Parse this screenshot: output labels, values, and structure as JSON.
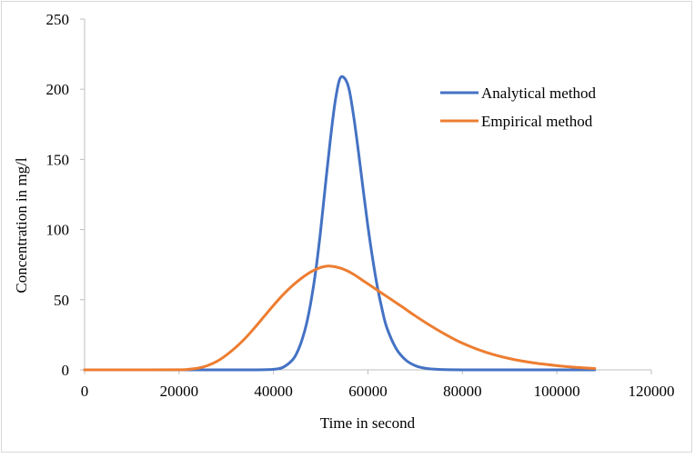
{
  "chart_data": {
    "type": "line",
    "title": "",
    "xlabel": "Time in second",
    "ylabel": "Concentration in mg/l",
    "xlim": [
      0,
      120000
    ],
    "ylim": [
      0,
      250
    ],
    "xticks": [
      0,
      20000,
      40000,
      60000,
      80000,
      100000,
      120000
    ],
    "yticks": [
      0,
      50,
      100,
      150,
      200,
      250
    ],
    "x_tick_labels": [
      "0",
      "20000",
      "40000",
      "60000",
      "80000",
      "100000",
      "120000"
    ],
    "y_tick_labels": [
      "0",
      "50",
      "100",
      "150",
      "200",
      "250"
    ],
    "grid": false,
    "legend_position": "top-right",
    "series": [
      {
        "name": "Analytical method",
        "color": "#4472c4",
        "x": [
          0,
          10000,
          20000,
          30000,
          36000,
          40000,
          42000,
          44000,
          45000,
          46000,
          47000,
          48000,
          49000,
          50000,
          51000,
          52000,
          53000,
          54000,
          55000,
          56000,
          57000,
          58000,
          59000,
          60000,
          61000,
          62000,
          63000,
          64000,
          66000,
          68000,
          70000,
          72000,
          75000,
          80000,
          90000,
          100000,
          108000
        ],
        "y": [
          0,
          0,
          0,
          0,
          0.02,
          0.4,
          1.8,
          7,
          12.5,
          21,
          33,
          50,
          72,
          100,
          132,
          163,
          190,
          207,
          208,
          200,
          180,
          155,
          128,
          102,
          79,
          59,
          43,
          30,
          15,
          7,
          3,
          1.2,
          0.3,
          0.02,
          0,
          0,
          0
        ]
      },
      {
        "name": "Empirical method",
        "color": "#ed7d31",
        "x": [
          0,
          10000,
          20000,
          22000,
          24000,
          26000,
          28000,
          30000,
          32000,
          34000,
          36000,
          38000,
          40000,
          42000,
          44000,
          46000,
          48000,
          50000,
          51500,
          53000,
          55000,
          57000,
          59000,
          61000,
          63000,
          65000,
          67000,
          70000,
          73000,
          76000,
          80000,
          85000,
          90000,
          95000,
          100000,
          104000,
          108000
        ],
        "y": [
          0,
          0,
          0.1,
          0.4,
          1.2,
          3,
          6,
          10.5,
          16,
          22.5,
          30,
          38,
          46,
          53.5,
          60,
          65.5,
          70,
          73,
          74,
          73.5,
          71.5,
          68,
          63.5,
          59,
          54.5,
          50,
          45.5,
          38.5,
          32,
          26,
          19,
          12.5,
          8,
          5,
          3,
          1.8,
          1
        ]
      }
    ]
  }
}
